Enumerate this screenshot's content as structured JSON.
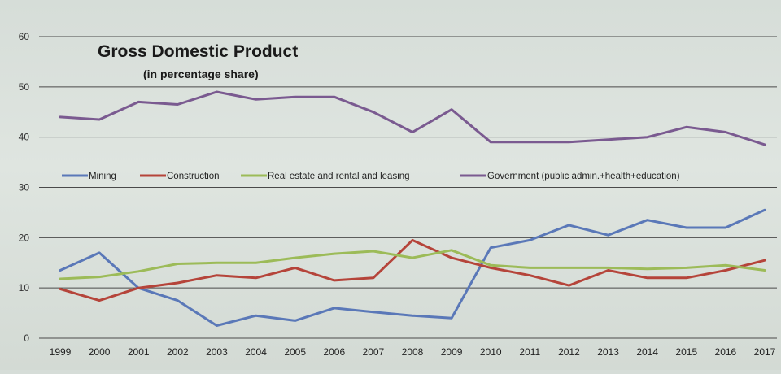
{
  "chart_data": {
    "type": "line",
    "title": "Gross Domestic Product",
    "subtitle": "(in percentage share)",
    "xlabel": "",
    "ylabel": "",
    "x": [
      "1999",
      "2000",
      "2001",
      "2002",
      "2003",
      "2004",
      "2005",
      "2006",
      "2007",
      "2008",
      "2009",
      "2010",
      "2011",
      "2012",
      "2013",
      "2014",
      "2015",
      "2016",
      "2017"
    ],
    "ylim": [
      0,
      60
    ],
    "yticks": [
      "0",
      "10",
      "20",
      "30",
      "40",
      "50",
      "60"
    ],
    "grid": true,
    "legend_position": "center",
    "series": [
      {
        "name": "Mining",
        "color": "#5a78b8",
        "values": [
          13.5,
          17,
          10,
          7.5,
          2.5,
          4.5,
          3.5,
          6,
          5.2,
          4.5,
          4,
          18,
          19.5,
          22.5,
          20.5,
          23.5,
          22,
          22,
          25.5
        ]
      },
      {
        "name": "Construction",
        "color": "#b5443a",
        "values": [
          9.8,
          7.5,
          10,
          11,
          12.5,
          12,
          14,
          11.5,
          12,
          19.5,
          16,
          14,
          12.5,
          10.5,
          13.5,
          12,
          12,
          13.5,
          15.5
        ]
      },
      {
        "name": "Real estate and rental and leasing",
        "color": "#9cbb58",
        "values": [
          11.8,
          12.2,
          13.3,
          14.8,
          15,
          15,
          16,
          16.8,
          17.3,
          16,
          17.5,
          14.5,
          14,
          14,
          14,
          13.8,
          14,
          14.5,
          13.5
        ]
      },
      {
        "name": "Government (public admin.+health+education)",
        "color": "#7a5a90",
        "values": [
          44,
          43.5,
          47,
          46.5,
          49,
          47.5,
          48,
          48,
          45,
          41,
          45.5,
          39,
          39,
          39,
          39.5,
          40,
          42,
          41,
          38.5
        ]
      }
    ]
  }
}
